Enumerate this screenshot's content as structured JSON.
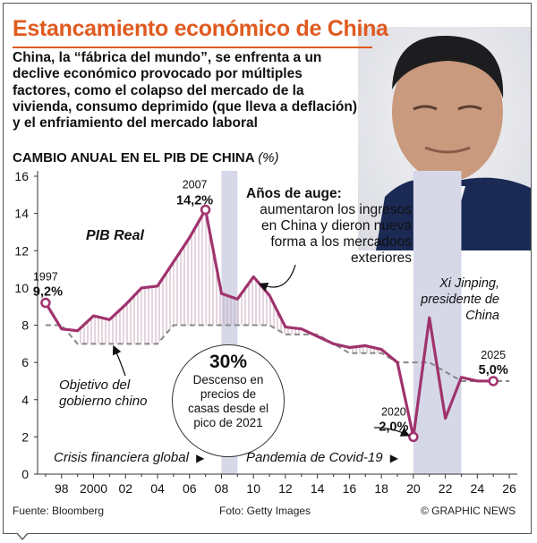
{
  "header": {
    "title": "Estancamiento económico de China",
    "intro": "China, la “fábrica del mundo”, se enfrenta a un declive económico provocado por múltiples factores, como el colapso del mercado de la vivienda, consumo deprimido (que lleva a deflación) y el enfriamiento del mercado laboral"
  },
  "chart_title": {
    "text": "CAMBIO ANUAL EN EL PIB DE CHINA",
    "unit": "(%)"
  },
  "chart_data": {
    "type": "line",
    "title": "CAMBIO ANUAL EN EL PIB DE CHINA (%)",
    "ylim": [
      0,
      16
    ],
    "xlim": [
      1996.5,
      2026.5
    ],
    "yticks": [
      "0",
      "2",
      "4",
      "6",
      "8",
      "10",
      "12",
      "14",
      "16"
    ],
    "xtick_labels": [
      "98",
      "2000",
      "02",
      "04",
      "06",
      "08",
      "10",
      "12",
      "14",
      "16",
      "18",
      "20",
      "22",
      "24",
      "26"
    ],
    "xtick_years": [
      1998,
      2000,
      2002,
      2004,
      2006,
      2008,
      2010,
      2012,
      2014,
      2016,
      2018,
      2020,
      2022,
      2024,
      2026
    ],
    "series": [
      {
        "name": "PIB Real",
        "color": "#a0336d",
        "x": [
          1997,
          1998,
          1999,
          2000,
          2001,
          2002,
          2003,
          2004,
          2005,
          2006,
          2007,
          2008,
          2009,
          2010,
          2011,
          2012,
          2013,
          2014,
          2015,
          2016,
          2017,
          2018,
          2019,
          2020,
          2021,
          2022,
          2023,
          2024,
          2025
        ],
        "y": [
          9.2,
          7.8,
          7.7,
          8.5,
          8.3,
          9.1,
          10.0,
          10.1,
          11.4,
          12.7,
          14.2,
          9.7,
          9.4,
          10.6,
          9.6,
          7.9,
          7.8,
          7.4,
          7.0,
          6.8,
          6.9,
          6.7,
          6.0,
          2.0,
          8.4,
          3.0,
          5.2,
          5.0,
          5.0
        ]
      },
      {
        "name": "Objetivo del gobierno chino",
        "color": "#888888",
        "style": "dashed",
        "x": [
          1997,
          1998,
          1999,
          2000,
          2001,
          2002,
          2003,
          2004,
          2005,
          2006,
          2007,
          2008,
          2009,
          2010,
          2011,
          2012,
          2013,
          2014,
          2015,
          2016,
          2017,
          2018,
          2019,
          2020,
          2021,
          2022,
          2023,
          2024,
          2025,
          2026
        ],
        "y": [
          8.0,
          8.0,
          7.0,
          7.0,
          7.0,
          7.0,
          7.0,
          7.0,
          8.0,
          8.0,
          8.0,
          8.0,
          8.0,
          8.0,
          8.0,
          7.5,
          7.5,
          7.5,
          7.0,
          6.5,
          6.5,
          6.5,
          6.0,
          6.0,
          6.0,
          5.5,
          5.0,
          5.0,
          5.0,
          5.0
        ]
      }
    ],
    "shaded_periods": [
      {
        "label": "Crisis financiera global",
        "x": [
          2008,
          2009
        ]
      },
      {
        "label": "Pandemia de Covid-19",
        "x": [
          2020,
          2023
        ]
      }
    ],
    "highlight_points": [
      {
        "x": 1997,
        "y": 9.2,
        "year_label": "1997",
        "value_label": "9,2%"
      },
      {
        "x": 2007,
        "y": 14.2,
        "year_label": "2007",
        "value_label": "14,2%"
      },
      {
        "x": 2020,
        "y": 2.0,
        "year_label": "2020",
        "value_label": "2,0%"
      },
      {
        "x": 2025,
        "y": 5.0,
        "year_label": "2025",
        "value_label": "5,0%"
      }
    ],
    "grid": false
  },
  "annotations": {
    "pib_real": "PIB Real",
    "boom_title": "Años de auge:",
    "boom_body": "aumentaron los ingresos en China y dieron nueva forma a los mercadoos exteriores",
    "objetivo": "Objetivo del gobierno chino",
    "housing_pct": "30%",
    "housing_text": "Descenso en precios de casas desde el pico de 2021",
    "crisis": "Crisis financiera global",
    "covid": "Pandemia de Covid-19",
    "caption_name": "Xi Jinping,",
    "caption_role": "presidente de China",
    "arrow_right": "▶"
  },
  "footer": {
    "source": "Fuente: Bloomberg",
    "photo": "Foto: Getty Images",
    "credit": "© GRAPHIC NEWS"
  },
  "colors": {
    "accent": "#e05a1f",
    "series": "#a0336d",
    "target": "#888888",
    "shade": "#d6d8e8",
    "hatch": "#c9a8be"
  }
}
